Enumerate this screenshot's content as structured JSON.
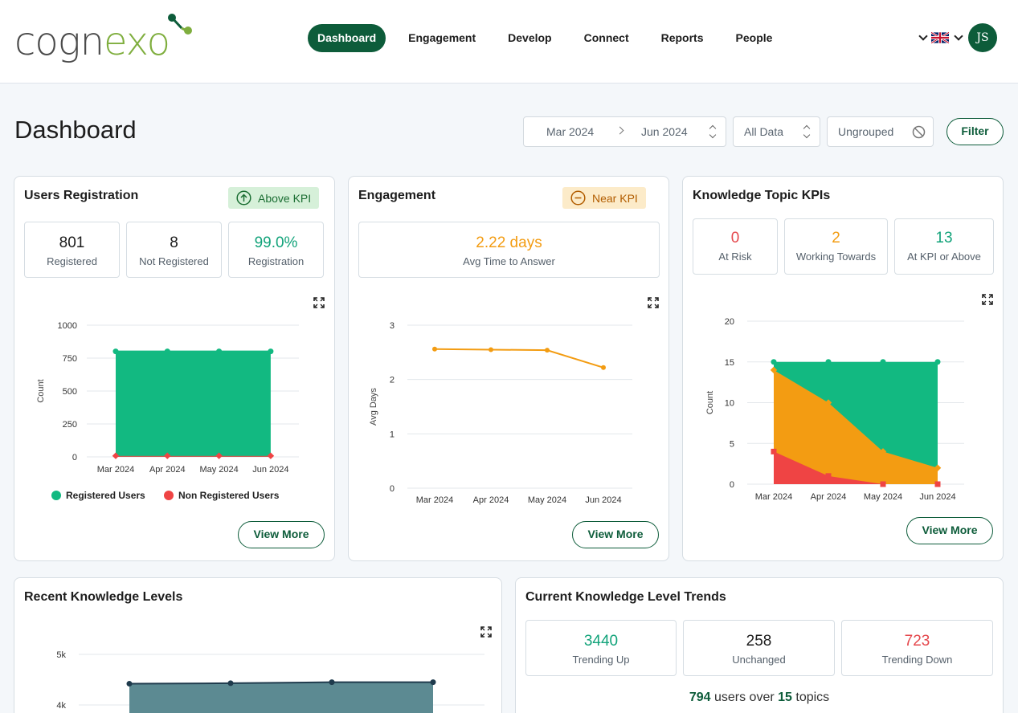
{
  "header": {
    "logo": {
      "text_start": "cogn",
      "text_accent": "exo"
    },
    "nav": [
      "Dashboard",
      "Engagement",
      "Develop",
      "Connect",
      "Reports",
      "People"
    ],
    "active_nav": "Dashboard",
    "user_initials": "JS"
  },
  "page": {
    "title": "Dashboard",
    "date_from": "Mar 2024",
    "date_to": "Jun 2024",
    "data_select": "All Data",
    "group_select": "Ungrouped",
    "filter_label": "Filter"
  },
  "users_registration": {
    "title": "Users Registration",
    "badge": "Above KPI",
    "kpis": [
      {
        "value": "801",
        "label": "Registered"
      },
      {
        "value": "8",
        "label": "Not Registered"
      },
      {
        "value": "99.0%",
        "label": "Registration"
      }
    ],
    "legend": [
      "Registered Users",
      "Non Registered Users"
    ],
    "view_more": "View More"
  },
  "engagement": {
    "title": "Engagement",
    "badge": "Near KPI",
    "kpi": {
      "value": "2.22 days",
      "label": "Avg Time to Answer"
    },
    "view_more": "View More"
  },
  "knowledge_topic": {
    "title": "Knowledge Topic KPIs",
    "kpis": [
      {
        "value": "0",
        "label": "At Risk"
      },
      {
        "value": "2",
        "label": "Working Towards"
      },
      {
        "value": "13",
        "label": "At KPI or Above"
      }
    ],
    "view_more": "View More"
  },
  "recent_levels": {
    "title": "Recent Knowledge Levels"
  },
  "trends": {
    "title": "Current Knowledge Level Trends",
    "kpis": [
      {
        "value": "3440",
        "label": "Trending Up"
      },
      {
        "value": "258",
        "label": "Unchanged"
      },
      {
        "value": "723",
        "label": "Trending Down"
      }
    ],
    "summary": {
      "users": "794",
      "users_text": "users over",
      "topics": "15",
      "topics_text": "topics"
    }
  },
  "colors": {
    "brand": "#0d5c3a",
    "green": "#12b981",
    "red": "#ef4444",
    "orange": "#f39c12",
    "teal": "#5c8a92"
  },
  "chart_data": [
    {
      "type": "area",
      "categories": [
        "Mar 2024",
        "Apr 2024",
        "May 2024",
        "Jun 2024"
      ],
      "ylabel": "Count",
      "ylim": [
        0,
        1000
      ],
      "yticks": [
        0,
        250,
        500,
        750,
        1000
      ],
      "series": [
        {
          "name": "Registered Users",
          "values": [
            801,
            801,
            801,
            801
          ]
        },
        {
          "name": "Non Registered Users",
          "values": [
            8,
            8,
            8,
            8
          ]
        }
      ],
      "legend": "bottom"
    },
    {
      "type": "line",
      "categories": [
        "Mar 2024",
        "Apr 2024",
        "May 2024",
        "Jun 2024"
      ],
      "ylabel": "Avg Days",
      "ylim": [
        0,
        3
      ],
      "yticks": [
        0,
        1,
        2,
        3
      ],
      "series": [
        {
          "values": [
            2.56,
            2.55,
            2.54,
            2.22
          ]
        }
      ]
    },
    {
      "type": "area",
      "categories": [
        "Mar 2024",
        "Apr 2024",
        "May 2024",
        "Jun 2024"
      ],
      "ylabel": "Count",
      "ylim": [
        0,
        20
      ],
      "yticks": [
        0,
        5,
        10,
        15,
        20
      ],
      "series": [
        {
          "values": [
            15,
            15,
            15,
            15
          ]
        },
        {
          "values": [
            14,
            10,
            4,
            2
          ]
        },
        {
          "values": [
            4,
            1,
            0,
            0
          ]
        }
      ]
    },
    {
      "type": "area",
      "yticks_visible": [
        "5k",
        "4k"
      ],
      "ylim": [
        3000,
        5000
      ],
      "series": [
        {
          "values": [
            4420,
            4430,
            4450,
            4450
          ]
        }
      ]
    }
  ]
}
